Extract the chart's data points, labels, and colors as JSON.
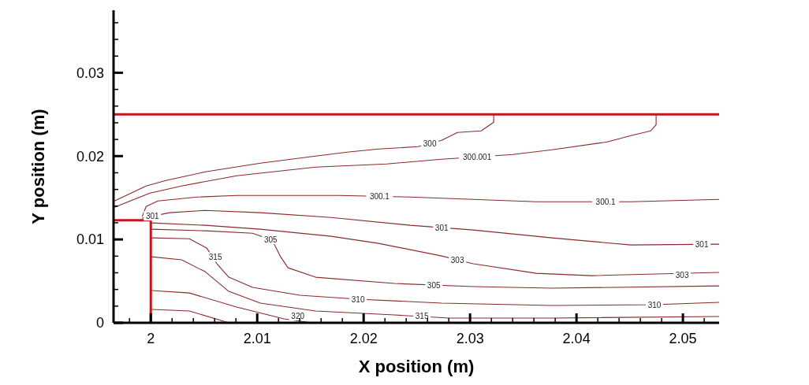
{
  "chart_data": {
    "type": "line",
    "xlabel": "X position (m)",
    "ylabel": "Y position (m)",
    "xlim": [
      1.9965,
      2.0534
    ],
    "ylim": [
      0,
      0.0375
    ],
    "xticks": [
      {
        "value": 1.998,
        "label": null
      },
      2,
      {
        "value": 2.002,
        "label": null
      },
      {
        "value": 2.004,
        "label": null
      },
      {
        "value": 2.006,
        "label": null
      },
      {
        "value": 2.008,
        "label": null
      },
      2.01,
      {
        "value": 2.012,
        "label": null
      },
      {
        "value": 2.014,
        "label": null
      },
      {
        "value": 2.016,
        "label": null
      },
      {
        "value": 2.018,
        "label": null
      },
      2.02,
      {
        "value": 2.022,
        "label": null
      },
      {
        "value": 2.024,
        "label": null
      },
      {
        "value": 2.026,
        "label": null
      },
      {
        "value": 2.028,
        "label": null
      },
      2.03,
      {
        "value": 2.032,
        "label": null
      },
      {
        "value": 2.034,
        "label": null
      },
      {
        "value": 2.036,
        "label": null
      },
      {
        "value": 2.038,
        "label": null
      },
      2.04,
      {
        "value": 2.042,
        "label": null
      },
      {
        "value": 2.044,
        "label": null
      },
      {
        "value": 2.046,
        "label": null
      },
      {
        "value": 2.048,
        "label": null
      },
      2.05,
      {
        "value": 2.052,
        "label": null
      }
    ],
    "yticks": [
      0,
      {
        "value": 0.002,
        "label": null
      },
      {
        "value": 0.004,
        "label": null
      },
      {
        "value": 0.006,
        "label": null
      },
      {
        "value": 0.008,
        "label": null
      },
      0.01,
      {
        "value": 0.012,
        "label": null
      },
      {
        "value": 0.014,
        "label": null
      },
      {
        "value": 0.016,
        "label": null
      },
      {
        "value": 0.018,
        "label": null
      },
      0.02,
      {
        "value": 0.022,
        "label": null
      },
      {
        "value": 0.024,
        "label": null
      },
      {
        "value": 0.026,
        "label": null
      },
      {
        "value": 0.028,
        "label": null
      },
      0.03,
      {
        "value": 0.032,
        "label": null
      },
      {
        "value": 0.034,
        "label": null
      },
      {
        "value": 0.036,
        "label": null
      }
    ],
    "ref_lines": [
      {
        "axis": "y",
        "value": 0.025,
        "color": "#c0161c"
      }
    ],
    "series": [
      {
        "name": "300",
        "color": "#8b2a2a",
        "x": [
          1.99659,
          1.99956,
          2.00141,
          2.00511,
          2.0103,
          2.01548,
          2.01844,
          2.02141,
          2.02511,
          2.02733,
          2.02881,
          2.03104,
          2.03222,
          2.03222
        ],
        "values": [
          0.01462,
          0.01642,
          0.01708,
          0.01811,
          0.01915,
          0.02,
          0.02047,
          0.02085,
          0.02113,
          0.02189,
          0.02283,
          0.02302,
          0.02406,
          0.025
        ]
      },
      {
        "name": "300.001",
        "color": "#8b2a2a",
        "x": [
          1.99659,
          1.99993,
          2.00289,
          2.00807,
          2.01548,
          2.02215,
          2.02733,
          2.034,
          2.0377,
          2.04289,
          2.04511,
          2.04696,
          2.04748,
          2.04748
        ],
        "values": [
          0.01387,
          0.01557,
          0.01642,
          0.01764,
          0.01868,
          0.01906,
          0.01962,
          0.02019,
          0.02075,
          0.0217,
          0.02245,
          0.02302,
          0.02377,
          0.025
        ]
      },
      {
        "color": "#8b2a2a",
        "x": [
          1.99919,
          1.99956,
          2.00067,
          2.00437,
          2.00807,
          2.0177,
          2.02437,
          2.0303,
          2.03622,
          2.04511,
          2.0534
        ],
        "values": [
          0.01274,
          0.01396,
          0.01462,
          0.01509,
          0.01528,
          0.01528,
          0.01509,
          0.01481,
          0.01453,
          0.01453,
          0.01481
        ]
      },
      {
        "name": "301",
        "color": "#8b2a2a",
        "x": [
          1.99919,
          2.00178,
          2.00511,
          2.0103,
          2.01696,
          2.02437,
          2.0303,
          2.0377,
          2.04511,
          2.0534
        ],
        "values": [
          0.01255,
          0.01321,
          0.01349,
          0.01321,
          0.01264,
          0.0117,
          0.01113,
          0.01019,
          0.00934,
          0.00943
        ]
      },
      {
        "name": "303",
        "color": "#8b2a2a",
        "x": [
          2.00007,
          2.00511,
          2.0103,
          2.01696,
          2.02141,
          2.02733,
          2.0303,
          2.03622,
          2.04141,
          2.0534
        ],
        "values": [
          0.01198,
          0.0117,
          0.01123,
          0.01038,
          0.00953,
          0.00802,
          0.00708,
          0.00594,
          0.00566,
          0.00604
        ]
      },
      {
        "name": "305",
        "color": "#8b2a2a",
        "x": [
          2.00007,
          2.00511,
          2.00956,
          2.01141,
          2.01215,
          2.01289,
          2.01548,
          2.02289,
          2.0303,
          2.0377,
          2.0534
        ],
        "values": [
          0.01123,
          0.01104,
          0.01075,
          0.00991,
          0.00802,
          0.0066,
          0.00547,
          0.00472,
          0.00434,
          0.00415,
          0.00443
        ]
      },
      {
        "color": "#8b2a2a",
        "x": [
          2.00007,
          2.00363,
          2.00526,
          2.00622,
          2.00733,
          2.00956,
          2.014,
          2.01948,
          2.02733,
          2.0377,
          2.04733,
          2.0534
        ],
        "values": [
          0.01019,
          0.01009,
          0.00896,
          0.00708,
          0.00547,
          0.00425,
          0.0033,
          0.00283,
          0.00236,
          0.00208,
          0.00217,
          0.00245
        ]
      },
      {
        "name": "315",
        "color": "#8b2a2a",
        "x": [
          2.00007,
          2.00289,
          2.00511,
          2.00733,
          2.0103,
          2.01548,
          2.02289,
          2.02807,
          2.0377,
          2.0534
        ],
        "values": [
          0.00792,
          0.00755,
          0.00613,
          0.00377,
          0.00236,
          0.00142,
          0.00094,
          0.00057,
          0.00057,
          0.00075
        ]
      },
      {
        "name": "320",
        "color": "#8b2a2a",
        "x": [
          2.00007,
          2.00363,
          2.00807,
          2.01252,
          2.01511
        ],
        "values": [
          0.00387,
          0.00358,
          0.00189,
          0.00047,
          0
        ]
      },
      {
        "color": "#8b2a2a",
        "x": [
          2.00007,
          2.00363,
          2.00733
        ],
        "values": [
          0.0016,
          0.00142,
          0
        ]
      },
      {
        "color": "#c0161c",
        "x": [
          1.9965,
          2,
          2
        ],
        "values": [
          0.0123,
          0.0123,
          0
        ]
      }
    ],
    "annotations": [
      {
        "text": "300.1",
        "x": 2.0215,
        "y": 0.01517
      },
      {
        "text": "300.1",
        "x": 2.04274,
        "y": 0.01453
      },
      {
        "text": "301",
        "x": 2.00015,
        "y": 0.01283
      },
      {
        "text": "301",
        "x": 2.05178,
        "y": 0.0094
      },
      {
        "text": "303",
        "x": 2.04993,
        "y": 0.00575
      },
      {
        "text": "305",
        "x": 2.01126,
        "y": 0.01
      },
      {
        "text": "310",
        "x": 2.01948,
        "y": 0.00283
      },
      {
        "text": "310",
        "x": 2.04733,
        "y": 0.00217
      },
      {
        "text": "315",
        "x": 2.00607,
        "y": 0.0079
      }
    ]
  }
}
